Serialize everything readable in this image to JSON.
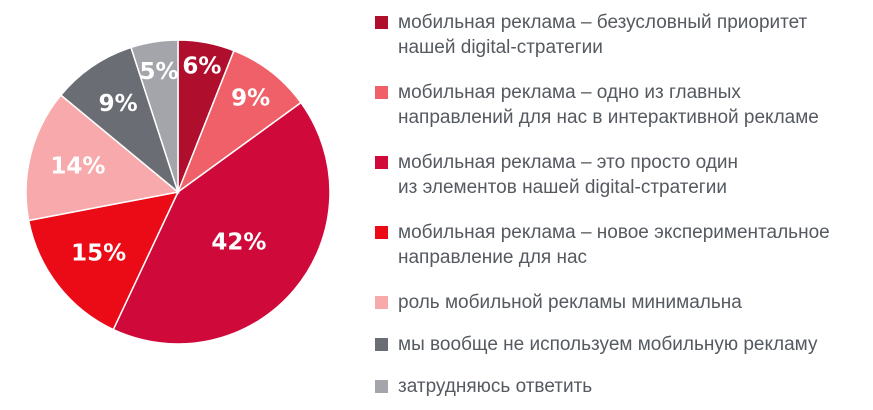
{
  "chart_data": {
    "type": "pie",
    "title": "",
    "slices": [
      {
        "label": "мобильная реклама – безусловный приоритет нашей digital-стратегии",
        "legend_lines": [
          "мобильная реклама – безусловный приоритет",
          "нашей digital-стратегии"
        ],
        "value": 6,
        "value_label": "6%",
        "color": "#b00e2d"
      },
      {
        "label": "мобильная реклама – одно из главных направлений для нас в интерактивной рекламе",
        "legend_lines": [
          "мобильная реклама – одно из главных",
          "направлений для нас в интерактивной рекламе"
        ],
        "value": 9,
        "value_label": "9%",
        "color": "#ef6068"
      },
      {
        "label": "мобильная реклама – это просто один из элементов нашей digital-стратегии",
        "legend_lines": [
          "мобильная реклама – это просто один",
          "из элементов нашей digital-стратегии"
        ],
        "value": 42,
        "value_label": "42%",
        "color": "#cf0a3a"
      },
      {
        "label": "мобильная реклама – новое экспериментальное направление для нас",
        "legend_lines": [
          "мобильная реклама – новое экспериментальное",
          "направление для нас"
        ],
        "value": 15,
        "value_label": "15%",
        "color": "#ea0b16"
      },
      {
        "label": "роль мобильной рекламы минимальна",
        "legend_lines": [
          "роль мобильной рекламы минимальна"
        ],
        "value": 14,
        "value_label": "14%",
        "color": "#f7a9ab"
      },
      {
        "label": "мы вообще не используем мобильную рекламу",
        "legend_lines": [
          "мы вообще не используем мобильную рекламу"
        ],
        "value": 9,
        "value_label": "9%",
        "color": "#6b6d74"
      },
      {
        "label": "затрудняюсь ответить",
        "legend_lines": [
          "затрудняюсь ответить"
        ],
        "value": 5,
        "value_label": "5%",
        "color": "#a4a5aa"
      }
    ],
    "legend_position": "right",
    "start_angle_deg": 0,
    "direction": "clockwise"
  }
}
